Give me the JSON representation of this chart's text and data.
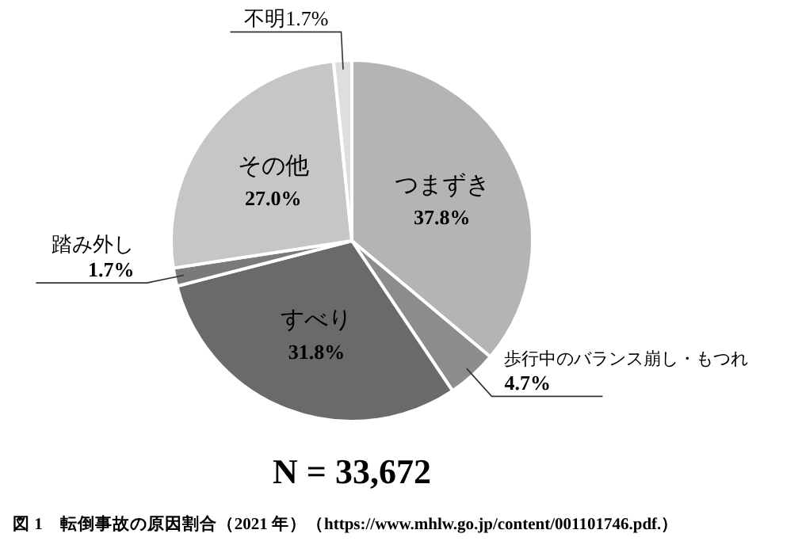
{
  "chart_data": {
    "type": "pie",
    "categories": [
      "つまずき",
      "歩行中のバランス崩し・もつれ",
      "すべり",
      "踏み外し",
      "その他",
      "不明"
    ],
    "values": [
      37.8,
      4.7,
      31.8,
      1.7,
      27.0,
      1.7
    ],
    "value_labels": [
      "37.8%",
      "4.7%",
      "31.8%",
      "1.7%",
      "27.0%",
      "1.7%"
    ],
    "colors": [
      "#b4b4b4",
      "#8c8c8c",
      "#6a6a6a",
      "#7a7a7a",
      "#c6c6c6",
      "#dedede"
    ],
    "annotations": [
      "N = 33,672",
      "図 1　転倒事故の原因割合（2021 年）（https://www.mhlw.go.jp/content/001101746.pdf.）"
    ]
  }
}
